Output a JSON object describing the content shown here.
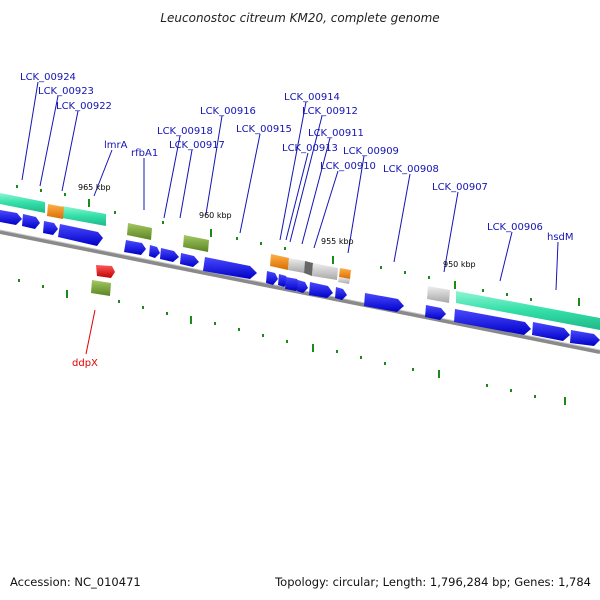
{
  "title": "Leuconostoc citreum KM20, complete genome",
  "accession": "Accession: NC_010471",
  "summary": "Topology: circular; Length: 1,796,284 bp; Genes: 1,784",
  "ticks": [
    "965 kbp",
    "960 kbp",
    "955 kbp",
    "950 kbp"
  ],
  "genes": [
    "LCK_00924",
    "LCK_00923",
    "LCK_00922",
    "lmrA",
    "rfbA1",
    "LCK_00918",
    "LCK_00917",
    "LCK_00916",
    "LCK_00915",
    "LCK_00914",
    "LCK_00912",
    "LCK_00911",
    "LCK_00913",
    "LCK_00910",
    "LCK_00909",
    "LCK_00908",
    "LCK_00907",
    "LCK_00906",
    "hsdM",
    "ddpX"
  ],
  "colors": {
    "cds": "#1010e0",
    "rrna": "#33dfa8",
    "orange": "#f08a14",
    "olive": "#6e9a28",
    "gray": "#c4c4c4",
    "red": "#e81010",
    "label": "#1414b4"
  }
}
